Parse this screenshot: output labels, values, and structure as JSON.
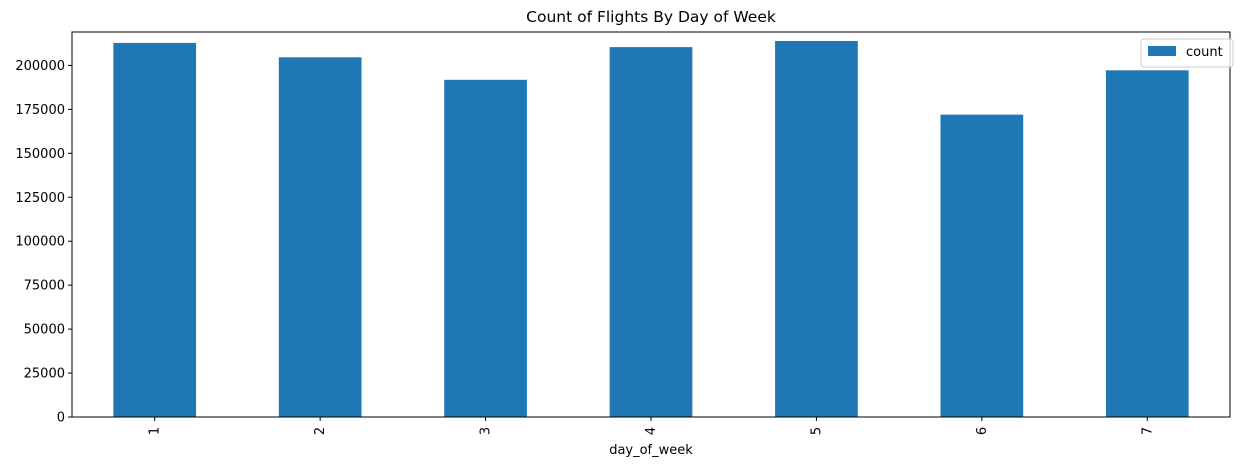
{
  "chart_data": {
    "type": "bar",
    "title": "Count of Flights By Day of Week",
    "xlabel": "day_of_week",
    "ylabel": "",
    "categories": [
      "1",
      "2",
      "3",
      "4",
      "5",
      "6",
      "7"
    ],
    "series": [
      {
        "name": "count",
        "color": "#1f77b4",
        "values": [
          212800,
          204600,
          191800,
          210400,
          213900,
          172000,
          197200
        ]
      }
    ],
    "ylim": [
      0,
      219000
    ],
    "yticks": [
      0,
      25000,
      50000,
      75000,
      100000,
      125000,
      150000,
      175000,
      200000
    ],
    "ytick_labels": [
      "0",
      "25000",
      "50000",
      "75000",
      "100000",
      "125000",
      "150000",
      "175000",
      "200000"
    ],
    "grid": false,
    "legend_position": "top-right",
    "x_tick_rotation": "vertical"
  }
}
